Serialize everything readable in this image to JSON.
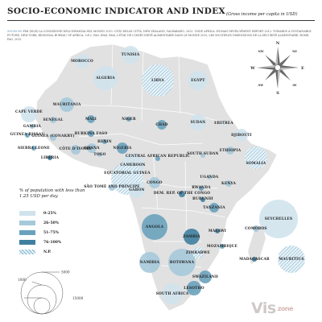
{
  "header": {
    "title": "SOCIO-ECONOMIC INDICATOR AND INDEX",
    "subtitle": "(Gross income per capita in USD)"
  },
  "source": {
    "label": "SOURCES",
    "text": "FMI (ISLE) LA CONDIZIONE DELL'INFANZIA NEL MONDO 2013: CITIZ DELLE CITTÀ, NEW ZEALAND, VALPARAÍSO, 2013. UNDP, AFRICA. HUMAN DEVELOPMENT REPORT 2012: TOWARDS A SUSTAINABLE FUTURE, NEW YORK, REGIONAL BUREAU OF AFRICA, 2012. FAO, IFAD, PAM, L'ÉTAT DE L'INSÉCURITÉ ALIMENTAIRE DANS LE MONDE 2013, LES MULTIPLES DIMENSIONS DE LA SÉCURITÉ ALIMENTAIRE, ROME, FAO, 2013."
  },
  "colors": {
    "land": "#e1e1e1",
    "c1": "#d0e3ed",
    "c2": "#a6c9da",
    "c3": "#6aa2bd",
    "c4": "#3f7f9f",
    "hatch": "#7fb6d0"
  },
  "legend": {
    "title": "% of population with less than 1.25 USD per day",
    "items": [
      {
        "label": "0–25%",
        "class": "c1"
      },
      {
        "label": "26–50%",
        "class": "c2"
      },
      {
        "label": "51–75%",
        "class": "c3"
      },
      {
        "label": "76–100%",
        "class": "c4"
      },
      {
        "label": "N.P.",
        "class": "hatch"
      }
    ]
  },
  "scale": {
    "values": [
      "1000",
      "5000",
      "15000"
    ]
  },
  "compass": {
    "n": "N",
    "s": "S",
    "e": "E",
    "w": "W",
    "nw": "NW",
    "ne": "NE",
    "sw": "SW",
    "se": "SE"
  },
  "countries": [
    {
      "name": "MOROCCO",
      "class": "c1"
    },
    {
      "name": "TUNISIA",
      "class": "c1"
    },
    {
      "name": "ALGERIA",
      "class": "c1"
    },
    {
      "name": "LIBYA",
      "class": "hatch"
    },
    {
      "name": "EGYPT",
      "class": "c1"
    },
    {
      "name": "CAPE VERDE",
      "class": "c1"
    },
    {
      "name": "MAURITANIA",
      "class": "c2"
    },
    {
      "name": "MALI",
      "class": "c3"
    },
    {
      "name": "NIGER",
      "class": "c3"
    },
    {
      "name": "CHAD",
      "class": "c3"
    },
    {
      "name": "SUDAN",
      "class": "c1"
    },
    {
      "name": "ERITREA",
      "class": "hatch"
    },
    {
      "name": "DJIBOUTI",
      "class": "c1"
    },
    {
      "name": "SENEGAL",
      "class": "c2"
    },
    {
      "name": "GAMBIA",
      "class": "c2"
    },
    {
      "name": "GUINEA BISSAU",
      "class": "c3"
    },
    {
      "name": "GUINEA (CONAKRY)",
      "class": "c2"
    },
    {
      "name": "SIERRA LEONE",
      "class": "c3"
    },
    {
      "name": "LIBERIA",
      "class": "c4"
    },
    {
      "name": "CÔTE D'IVOIRE",
      "class": "c2"
    },
    {
      "name": "BURKINA FASO",
      "class": "c3"
    },
    {
      "name": "GHANA",
      "class": "c2"
    },
    {
      "name": "TOGO",
      "class": "c2"
    },
    {
      "name": "BENIN",
      "class": "c3"
    },
    {
      "name": "NIGERIA",
      "class": "c3"
    },
    {
      "name": "ETHIOPIA",
      "class": "c2"
    },
    {
      "name": "SOMALIA",
      "class": "hatch"
    },
    {
      "name": "CENTRAL AFRICAN REPUBLIC",
      "class": "c3"
    },
    {
      "name": "SOUTH SUDAN",
      "class": "c2"
    },
    {
      "name": "CAMEROON",
      "class": "c1"
    },
    {
      "name": "EQUATORIAL GUINEA",
      "class": "hatch"
    },
    {
      "name": "GABON",
      "class": "c1"
    },
    {
      "name": "SÃO TOMÉ AND PRÍNCIPE",
      "class": "c2"
    },
    {
      "name": "CONGO",
      "class": "c2"
    },
    {
      "name": "DEM. REP. OF THE CONGO",
      "class": "c4"
    },
    {
      "name": "UGANDA",
      "class": "c2"
    },
    {
      "name": "KENYA",
      "class": "c2"
    },
    {
      "name": "RWANDA",
      "class": "c3"
    },
    {
      "name": "BURUNDI",
      "class": "c4"
    },
    {
      "name": "TANZANIA",
      "class": "c3"
    },
    {
      "name": "SEYCHELLES",
      "class": "c1"
    },
    {
      "name": "COMOROS",
      "class": "c2"
    },
    {
      "name": "ANGOLA",
      "class": "c3"
    },
    {
      "name": "ZAMBIA",
      "class": "c4"
    },
    {
      "name": "MALAWI",
      "class": "c4"
    },
    {
      "name": "MOZAMBIQUE",
      "class": "c3"
    },
    {
      "name": "MADAGASCAR",
      "class": "c4"
    },
    {
      "name": "MAURITIUS",
      "class": "hatch"
    },
    {
      "name": "NAMIBIA",
      "class": "c2"
    },
    {
      "name": "BOTSWANA",
      "class": "c2"
    },
    {
      "name": "ZIMBABWE",
      "class": "hatch"
    },
    {
      "name": "SWAZILAND",
      "class": "c3"
    },
    {
      "name": "LESOTHO",
      "class": "c3"
    },
    {
      "name": "SOUTH AFRICA",
      "class": "c1"
    }
  ],
  "logo": {
    "main": "Vis",
    "sub": "zone"
  }
}
